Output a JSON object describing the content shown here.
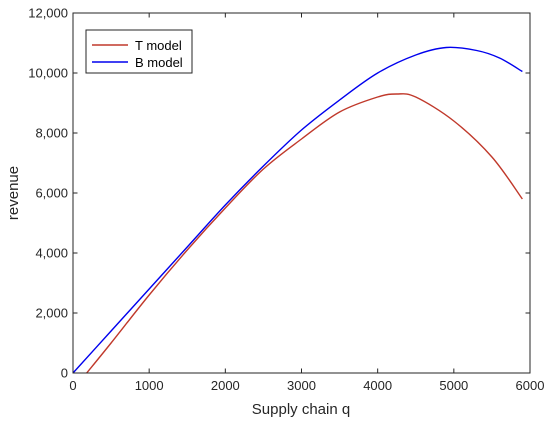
{
  "chart_data": {
    "type": "line",
    "xlabel": "Supply chain q",
    "ylabel": "revenue",
    "xlim": [
      0,
      6000
    ],
    "ylim": [
      0,
      12000
    ],
    "x_ticks": [
      0,
      1000,
      2000,
      3000,
      4000,
      5000,
      6000
    ],
    "y_ticks": [
      0,
      2000,
      4000,
      6000,
      8000,
      10000,
      12000
    ],
    "x_tick_labels": [
      "0",
      "1000",
      "2000",
      "3000",
      "4000",
      "5000",
      "6000"
    ],
    "y_tick_labels": [
      "0",
      "2,000",
      "4,000",
      "6,000",
      "8,000",
      "10,000",
      "12,000"
    ],
    "grid": false,
    "legend_position": "top-left",
    "series": [
      {
        "name": "T model",
        "color": "#c0392b",
        "x": [
          180,
          500,
          1000,
          1500,
          2000,
          2500,
          3000,
          3500,
          4000,
          4250,
          4500,
          5000,
          5500,
          5900
        ],
        "y": [
          0,
          1000,
          2600,
          4100,
          5500,
          6800,
          7800,
          8700,
          9200,
          9300,
          9200,
          8400,
          7200,
          5800
        ]
      },
      {
        "name": "B model",
        "color": "#0000ee",
        "x": [
          0,
          500,
          1000,
          1500,
          2000,
          2500,
          3000,
          3500,
          4000,
          4500,
          4900,
          5300,
          5600,
          5900
        ],
        "y": [
          0,
          1400,
          2800,
          4200,
          5600,
          6900,
          8100,
          9100,
          10000,
          10600,
          10850,
          10750,
          10500,
          10050
        ]
      }
    ]
  }
}
